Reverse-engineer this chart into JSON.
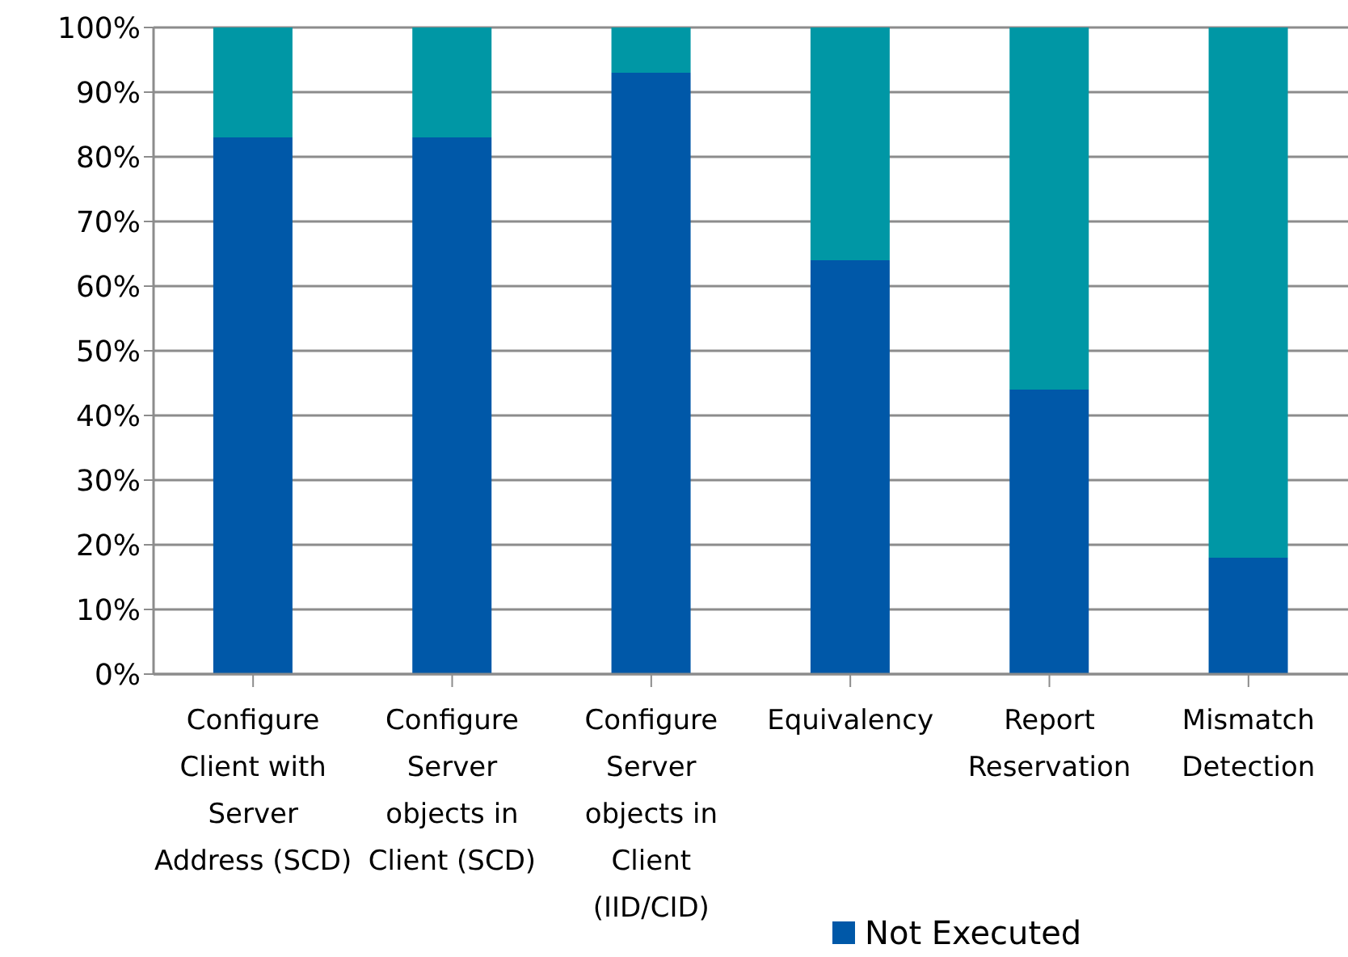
{
  "chart_data": {
    "type": "bar",
    "stacked": true,
    "categories": [
      "Configure Client with Server Address (SCD)",
      "Configure Server objects in Client (SCD)",
      "Configure Server objects in Client (IID/CID)",
      "Equivalency",
      "Report Reservation",
      "Mismatch Detection"
    ],
    "series": [
      {
        "name": "Not Executed",
        "color": "#0058a8",
        "values": [
          83,
          83,
          93,
          64,
          44,
          18
        ]
      },
      {
        "color": "#0097a5",
        "values": [
          17,
          17,
          7,
          36,
          56,
          82
        ]
      }
    ],
    "ylim": [
      0,
      100
    ],
    "yticks": [
      {
        "value": 0,
        "label": "0%"
      },
      {
        "value": 10,
        "label": "10%"
      },
      {
        "value": 20,
        "label": "20%"
      },
      {
        "value": 30,
        "label": "30%"
      },
      {
        "value": 40,
        "label": "40%"
      },
      {
        "value": 50,
        "label": "50%"
      },
      {
        "value": 60,
        "label": "60%"
      },
      {
        "value": 70,
        "label": "70%"
      },
      {
        "value": 80,
        "label": "80%"
      },
      {
        "value": 90,
        "label": "90%"
      },
      {
        "value": 100,
        "label": "100%"
      }
    ],
    "grid": "y",
    "legend": "bottom"
  }
}
